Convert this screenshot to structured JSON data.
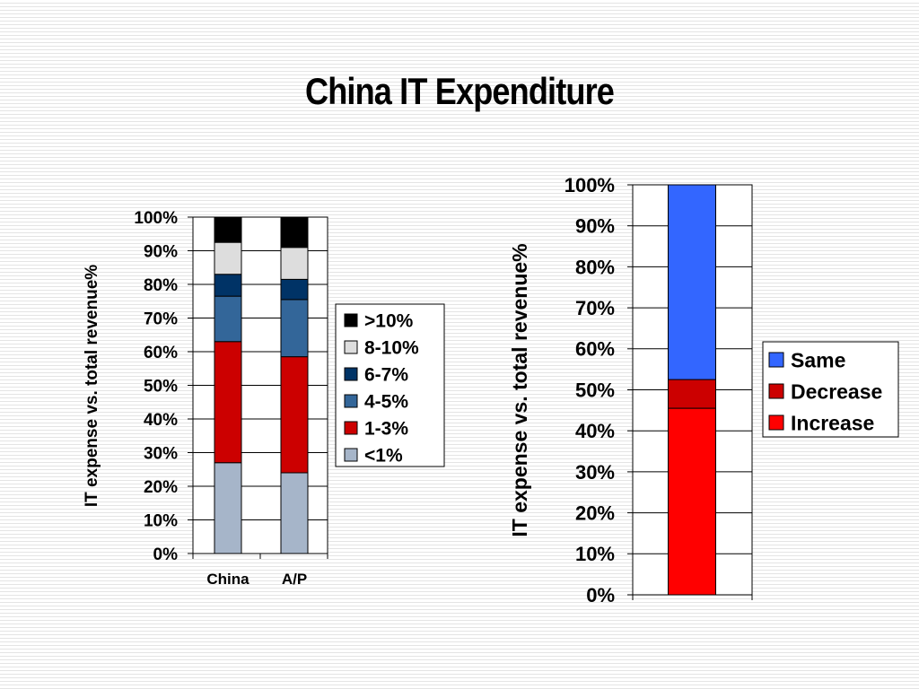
{
  "slide": {
    "title": "China IT Expenditure"
  },
  "chart_data": [
    {
      "type": "bar",
      "stacked": true,
      "percent_stacked": true,
      "ylabel": "IT expense vs. total revenue%",
      "ylim": [
        0,
        100
      ],
      "yticks": [
        "0%",
        "10%",
        "20%",
        "30%",
        "40%",
        "50%",
        "60%",
        "70%",
        "80%",
        "90%",
        "100%"
      ],
      "categories": [
        "China",
        "A/P"
      ],
      "grid": true,
      "legend_position": "right",
      "series": [
        {
          "name": "<1%",
          "color": "#a6b5c9",
          "values": [
            27,
            24
          ]
        },
        {
          "name": "1-3%",
          "color": "#cc0000",
          "values": [
            36,
            34.5
          ]
        },
        {
          "name": "4-5%",
          "color": "#336699",
          "values": [
            13.5,
            17
          ]
        },
        {
          "name": "6-7%",
          "color": "#003366",
          "values": [
            6.5,
            6
          ]
        },
        {
          "name": "8-10%",
          "color": "#dddddd",
          "values": [
            9.5,
            9.5
          ]
        },
        {
          "name": ">10%",
          "color": "#000000",
          "values": [
            7.5,
            9
          ]
        }
      ]
    },
    {
      "type": "bar",
      "stacked": true,
      "percent_stacked": true,
      "ylabel": "IT expense vs. total revenue%",
      "ylim": [
        0,
        100
      ],
      "yticks": [
        "0%",
        "10%",
        "20%",
        "30%",
        "40%",
        "50%",
        "60%",
        "70%",
        "80%",
        "90%",
        "100%"
      ],
      "categories": [
        ""
      ],
      "grid": true,
      "legend_position": "right",
      "series": [
        {
          "name": "Increase",
          "color": "#ff0000",
          "values": [
            45.5
          ]
        },
        {
          "name": "Decrease",
          "color": "#cc0000",
          "values": [
            7
          ]
        },
        {
          "name": "Same",
          "color": "#3366ff",
          "values": [
            47.5
          ]
        }
      ]
    }
  ]
}
